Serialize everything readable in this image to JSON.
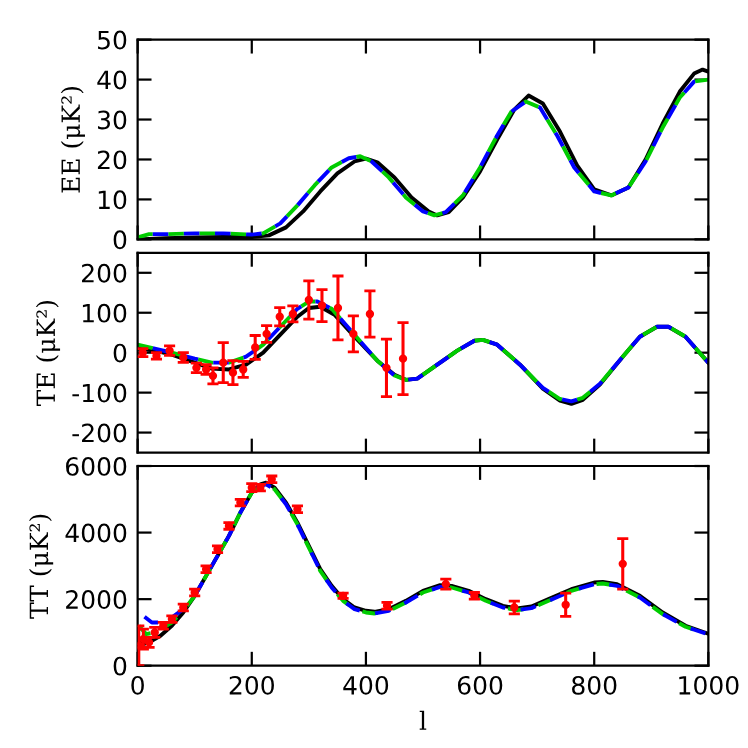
{
  "chart_data": [
    {
      "type": "line",
      "ylabel": "EE (μK²)",
      "xlim": [
        0,
        1000
      ],
      "xticks": [
        0,
        200,
        400,
        600,
        800,
        1000
      ],
      "ylim": [
        0,
        50
      ],
      "yticks": [
        0,
        10,
        20,
        30,
        40,
        50
      ],
      "tick_labels": "y",
      "grid": false,
      "legend": false,
      "series": [
        {
          "color": "#000000",
          "line_style": "solid",
          "x": [
            0,
            50,
            100,
            150,
            200,
            230,
            260,
            290,
            320,
            350,
            380,
            400,
            420,
            450,
            480,
            510,
            525,
            545,
            570,
            600,
            630,
            660,
            685,
            710,
            740,
            770,
            800,
            830,
            860,
            890,
            920,
            950,
            975,
            990,
            1000
          ],
          "values": [
            0,
            0.3,
            0.5,
            0.6,
            0.6,
            1,
            3,
            7,
            12,
            16.5,
            19.5,
            20.2,
            19.3,
            15.5,
            10.5,
            7,
            6,
            6.8,
            10.5,
            17,
            25,
            32.5,
            36,
            34,
            27,
            18.5,
            12.5,
            11,
            13,
            20,
            29,
            37,
            41.5,
            42.5,
            42
          ]
        },
        {
          "color": "#00cc00",
          "line_style": "dashed",
          "x": [
            0,
            20,
            50,
            100,
            150,
            200,
            220,
            250,
            280,
            310,
            340,
            370,
            390,
            410,
            440,
            470,
            500,
            520,
            540,
            570,
            600,
            630,
            655,
            680,
            705,
            735,
            765,
            800,
            830,
            860,
            890,
            920,
            950,
            975,
            1000
          ],
          "values": [
            0.5,
            1.3,
            1.3,
            1.5,
            1.5,
            1.2,
            1.5,
            4,
            8.5,
            13.5,
            18,
            20.3,
            20.8,
            19.5,
            15.5,
            10.5,
            7,
            6,
            6.8,
            11,
            18,
            26,
            32,
            34.5,
            33,
            26,
            18,
            12,
            11,
            13,
            19.5,
            28,
            35.5,
            39.5,
            40
          ]
        },
        {
          "color": "#0000ff",
          "line_style": "dashed",
          "x": [
            0,
            20,
            50,
            100,
            150,
            200,
            220,
            250,
            280,
            310,
            340,
            370,
            390,
            410,
            440,
            470,
            500,
            520,
            540,
            570,
            600,
            630,
            655,
            680,
            705,
            735,
            765,
            800,
            830,
            860,
            890,
            920,
            950,
            975,
            1000
          ],
          "values": [
            0.5,
            1.3,
            1.3,
            1.5,
            1.5,
            1.2,
            1.5,
            4,
            8.5,
            13.5,
            18,
            20.3,
            20.8,
            19.5,
            15.5,
            10.5,
            7,
            6,
            6.8,
            11,
            18,
            26,
            32,
            34.5,
            33,
            26,
            18,
            12,
            11,
            13,
            19.5,
            28,
            35.5,
            39.5,
            40
          ]
        }
      ]
    },
    {
      "type": "line",
      "ylabel": "TE (μK²)",
      "xlim": [
        0,
        1000
      ],
      "xticks": [
        0,
        200,
        400,
        600,
        800,
        1000
      ],
      "ylim": [
        -250,
        250
      ],
      "yticks": [
        -200,
        -100,
        0,
        100,
        200
      ],
      "tick_labels": "y",
      "grid": false,
      "legend": false,
      "series": [
        {
          "color": "#000000",
          "line_style": "solid",
          "x": [
            0,
            30,
            60,
            100,
            130,
            160,
            190,
            220,
            250,
            280,
            300,
            320,
            345,
            380,
            420,
            450,
            470,
            490,
            520,
            560,
            590,
            605,
            630,
            670,
            710,
            740,
            760,
            780,
            810,
            850,
            880,
            910,
            930,
            960,
            1000
          ],
          "values": [
            10,
            5,
            -5,
            -25,
            -40,
            -42,
            -30,
            0,
            45,
            90,
            112,
            115,
            95,
            40,
            -20,
            -55,
            -68,
            -65,
            -35,
            5,
            30,
            32,
            20,
            -30,
            -90,
            -120,
            -128,
            -118,
            -80,
            -10,
            40,
            65,
            65,
            40,
            -25
          ]
        },
        {
          "color": "#00cc00",
          "line_style": "dashed",
          "x": [
            0,
            30,
            60,
            100,
            130,
            160,
            190,
            220,
            250,
            280,
            300,
            315,
            340,
            380,
            420,
            450,
            470,
            490,
            520,
            560,
            590,
            605,
            630,
            670,
            710,
            740,
            760,
            780,
            810,
            850,
            880,
            910,
            930,
            960,
            1000
          ],
          "values": [
            20,
            10,
            0,
            -15,
            -25,
            -25,
            -10,
            20,
            65,
            110,
            128,
            128,
            110,
            45,
            -20,
            -57,
            -68,
            -65,
            -35,
            5,
            30,
            32,
            20,
            -30,
            -88,
            -116,
            -122,
            -113,
            -78,
            -10,
            40,
            65,
            65,
            40,
            -25
          ]
        },
        {
          "color": "#0000ff",
          "line_style": "dashed",
          "x": [
            0,
            30,
            60,
            100,
            130,
            160,
            190,
            220,
            250,
            280,
            300,
            315,
            340,
            380,
            420,
            450,
            470,
            490,
            520,
            560,
            590,
            605,
            630,
            670,
            710,
            740,
            760,
            780,
            810,
            850,
            880,
            910,
            930,
            960,
            1000
          ],
          "values": [
            20,
            10,
            0,
            -15,
            -25,
            -25,
            -10,
            20,
            65,
            110,
            128,
            128,
            110,
            45,
            -20,
            -57,
            -68,
            -65,
            -35,
            5,
            30,
            32,
            20,
            -30,
            -88,
            -116,
            -122,
            -113,
            -78,
            -10,
            40,
            65,
            65,
            40,
            -25
          ]
        },
        {
          "type": "scatter",
          "marker": "circle",
          "color": "#ff0000",
          "x": [
            9,
            33,
            56,
            80,
            103,
            120,
            132,
            150,
            167,
            185,
            206,
            226,
            249,
            272,
            300,
            323,
            351,
            378,
            407,
            436,
            465
          ],
          "values": [
            0,
            -8,
            5,
            -12,
            -38,
            -42,
            -58,
            -25,
            -50,
            -42,
            13,
            47,
            90,
            97,
            132,
            118,
            112,
            47,
            97,
            -38,
            -15
          ],
          "errors": [
            10,
            8,
            12,
            12,
            12,
            12,
            20,
            50,
            30,
            20,
            30,
            21,
            23,
            20,
            48,
            40,
            80,
            45,
            58,
            72,
            90
          ]
        }
      ]
    },
    {
      "type": "line",
      "ylabel": "TT (μK²)",
      "xlabel": "l",
      "xlim": [
        0,
        1000
      ],
      "xticks": [
        0,
        200,
        400,
        600,
        800,
        1000
      ],
      "ylim": [
        0,
        6000
      ],
      "yticks": [
        0,
        2000,
        4000,
        6000
      ],
      "grid": false,
      "legend": false,
      "series": [
        {
          "color": "#000000",
          "line_style": "solid",
          "x": [
            2,
            10,
            20,
            40,
            60,
            80,
            100,
            120,
            140,
            160,
            180,
            200,
            215,
            225,
            240,
            260,
            280,
            300,
            320,
            340,
            360,
            380,
            400,
            415,
            440,
            470,
            500,
            530,
            550,
            580,
            610,
            640,
            665,
            690,
            720,
            760,
            800,
            815,
            840,
            880,
            920,
            960,
            1000
          ],
          "values": [
            700,
            650,
            700,
            900,
            1200,
            1600,
            2100,
            2700,
            3300,
            3900,
            4600,
            5200,
            5450,
            5500,
            5350,
            4900,
            4300,
            3600,
            2900,
            2400,
            2000,
            1750,
            1650,
            1620,
            1700,
            1950,
            2250,
            2420,
            2400,
            2250,
            2000,
            1800,
            1720,
            1780,
            2000,
            2300,
            2500,
            2520,
            2450,
            2100,
            1600,
            1200,
            960
          ]
        },
        {
          "color": "#00cc00",
          "line_style": "dashed",
          "x": [
            2,
            15,
            30,
            50,
            60,
            80,
            100,
            120,
            140,
            160,
            180,
            200,
            215,
            225,
            240,
            260,
            280,
            300,
            320,
            340,
            360,
            380,
            400,
            415,
            440,
            470,
            500,
            530,
            550,
            580,
            610,
            640,
            665,
            690,
            720,
            760,
            800,
            815,
            840,
            880,
            920,
            960,
            1000
          ],
          "values": [
            1200,
            950,
            1000,
            1200,
            1300,
            1650,
            2100,
            2700,
            3300,
            3900,
            4600,
            5200,
            5400,
            5450,
            5300,
            4850,
            4250,
            3550,
            2850,
            2350,
            1950,
            1700,
            1600,
            1570,
            1650,
            1900,
            2200,
            2370,
            2350,
            2200,
            1950,
            1750,
            1670,
            1730,
            1950,
            2250,
            2450,
            2470,
            2400,
            2050,
            1550,
            1170,
            940
          ]
        },
        {
          "color": "#0000ff",
          "line_style": "dashed",
          "x": [
            2,
            10,
            25,
            40,
            60,
            80,
            100,
            120,
            140,
            160,
            180,
            200,
            215,
            225,
            240,
            260,
            280,
            300,
            320,
            340,
            360,
            380,
            400,
            415,
            440,
            470,
            500,
            530,
            550,
            580,
            610,
            640,
            665,
            690,
            720,
            760,
            800,
            815,
            840,
            880,
            920,
            960,
            1000
          ],
          "values": [
            1900,
            1500,
            1300,
            1300,
            1450,
            1700,
            2100,
            2700,
            3300,
            3900,
            4600,
            5200,
            5400,
            5450,
            5300,
            4850,
            4250,
            3550,
            2850,
            2350,
            1950,
            1700,
            1600,
            1570,
            1650,
            1900,
            2200,
            2370,
            2350,
            2200,
            1950,
            1750,
            1670,
            1730,
            1950,
            2250,
            2450,
            2470,
            2400,
            2050,
            1550,
            1170,
            940
          ]
        },
        {
          "type": "scatter",
          "marker": "circle",
          "color": "#ff0000",
          "x": [
            2,
            10,
            20,
            30,
            45,
            60,
            80,
            100,
            120,
            140,
            160,
            180,
            200,
            215,
            235,
            280,
            360,
            437,
            540,
            590,
            660,
            750,
            850
          ],
          "values": [
            600,
            800,
            700,
            1000,
            1200,
            1400,
            1750,
            2200,
            2900,
            3500,
            4200,
            4900,
            5350,
            5350,
            5600,
            4700,
            2100,
            1800,
            2450,
            2100,
            1750,
            1830,
            3060
          ],
          "errors": [
            600,
            300,
            150,
            150,
            100,
            100,
            100,
            100,
            100,
            100,
            100,
            100,
            120,
            100,
            100,
            100,
            80,
            100,
            150,
            100,
            190,
            350,
            760
          ]
        }
      ]
    }
  ]
}
